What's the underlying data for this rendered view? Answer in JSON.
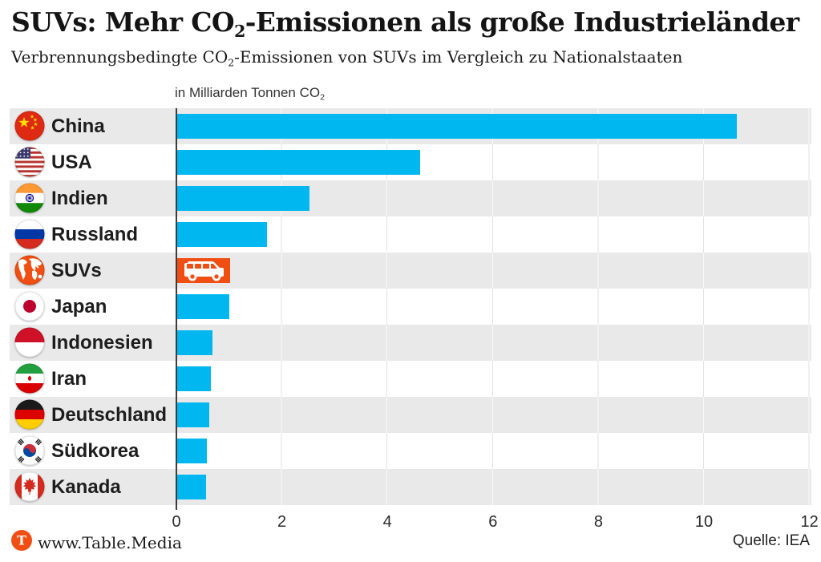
{
  "header": {
    "title": {
      "pre": "SUVs: Mehr CO",
      "sub": "2",
      "post": "-Emissionen als große Industrieländer"
    },
    "subtitle": {
      "pre": "Verbrennungsbedingte CO",
      "sub": "2",
      "post": "-Emissionen von SUVs im Vergleich zu Nationalstaaten"
    }
  },
  "axis": {
    "unit_label": {
      "pre": "in Milliarden Tonnen CO",
      "sub": "2"
    },
    "ticks": [
      0,
      2,
      4,
      6,
      8,
      10,
      12
    ],
    "max": 12
  },
  "chart_data": {
    "type": "bar",
    "orientation": "horizontal",
    "title": "SUVs: Mehr CO₂-Emissionen als große Industrieländer",
    "subtitle": "Verbrennungsbedingte CO₂-Emissionen von SUVs im Vergleich zu Nationalstaaten",
    "xlabel": "in Milliarden Tonnen CO₂",
    "unit": "Milliarden Tonnen CO₂",
    "xlim": [
      0,
      12
    ],
    "xticks": [
      0,
      2,
      4,
      6,
      8,
      10,
      12
    ],
    "grid": true,
    "categories": [
      "China",
      "USA",
      "Indien",
      "Russland",
      "SUVs",
      "Japan",
      "Indonesien",
      "Iran",
      "Deutschland",
      "Südkorea",
      "Kanada"
    ],
    "values": [
      10.6,
      4.6,
      2.5,
      1.7,
      1.0,
      0.98,
      0.67,
      0.64,
      0.6,
      0.56,
      0.54
    ],
    "flags": [
      "flag-china-icon",
      "flag-usa-icon",
      "flag-india-icon",
      "flag-russia-icon",
      "globe-icon",
      "flag-japan-icon",
      "flag-indonesia-icon",
      "flag-iran-icon",
      "flag-germany-icon",
      "flag-south-korea-icon",
      "flag-canada-icon"
    ],
    "highlight": {
      "index": 4,
      "label": "SUVs",
      "color": "#f04e13",
      "icon": "suv-car-icon"
    },
    "bar_color": "#00b7ef"
  },
  "colors": {
    "bar_blue": "#00b7ef",
    "highlight_orange": "#f04e13",
    "row_stripe": "#e9e9e9",
    "axis_line": "#3c3c3c"
  },
  "footer": {
    "brand": "www.Table.Media",
    "logo": "table-media-t-icon",
    "source": "Quelle: IEA"
  }
}
